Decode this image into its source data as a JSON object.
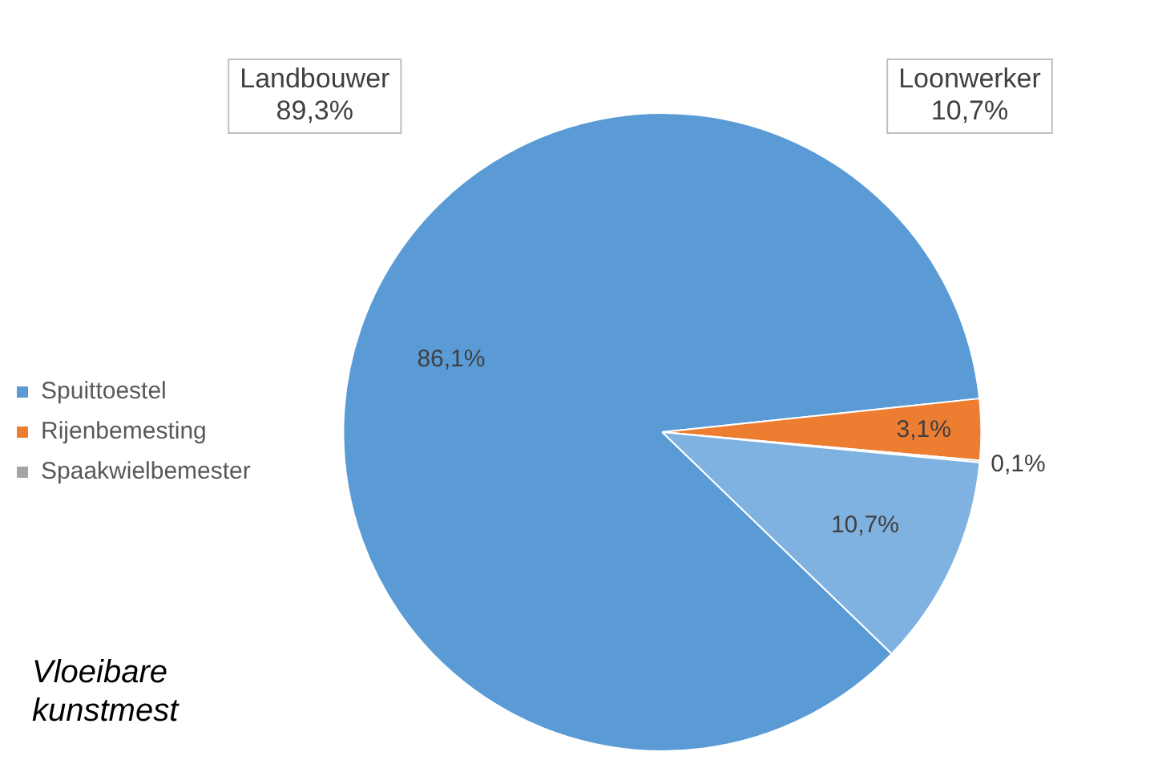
{
  "chart_data": {
    "type": "pie",
    "categories": [
      "Spuittoestel",
      "Rijenbemesting",
      "Spaakwielbemester",
      null
    ],
    "values": [
      86.1,
      3.1,
      0.1,
      10.7
    ],
    "colors": [
      "#5b9bd5",
      "#ed7d31",
      "#a5a5a5",
      "#7fb2e0"
    ],
    "value_labels": [
      "86,1%",
      "3,1%",
      "0,1%",
      "10,7%"
    ],
    "legend": "left",
    "annotations": [
      "Landbouwer\n89,3%",
      "Loonwerker\n10,7%",
      "Vloeibare\nkunstmest"
    ]
  }
}
